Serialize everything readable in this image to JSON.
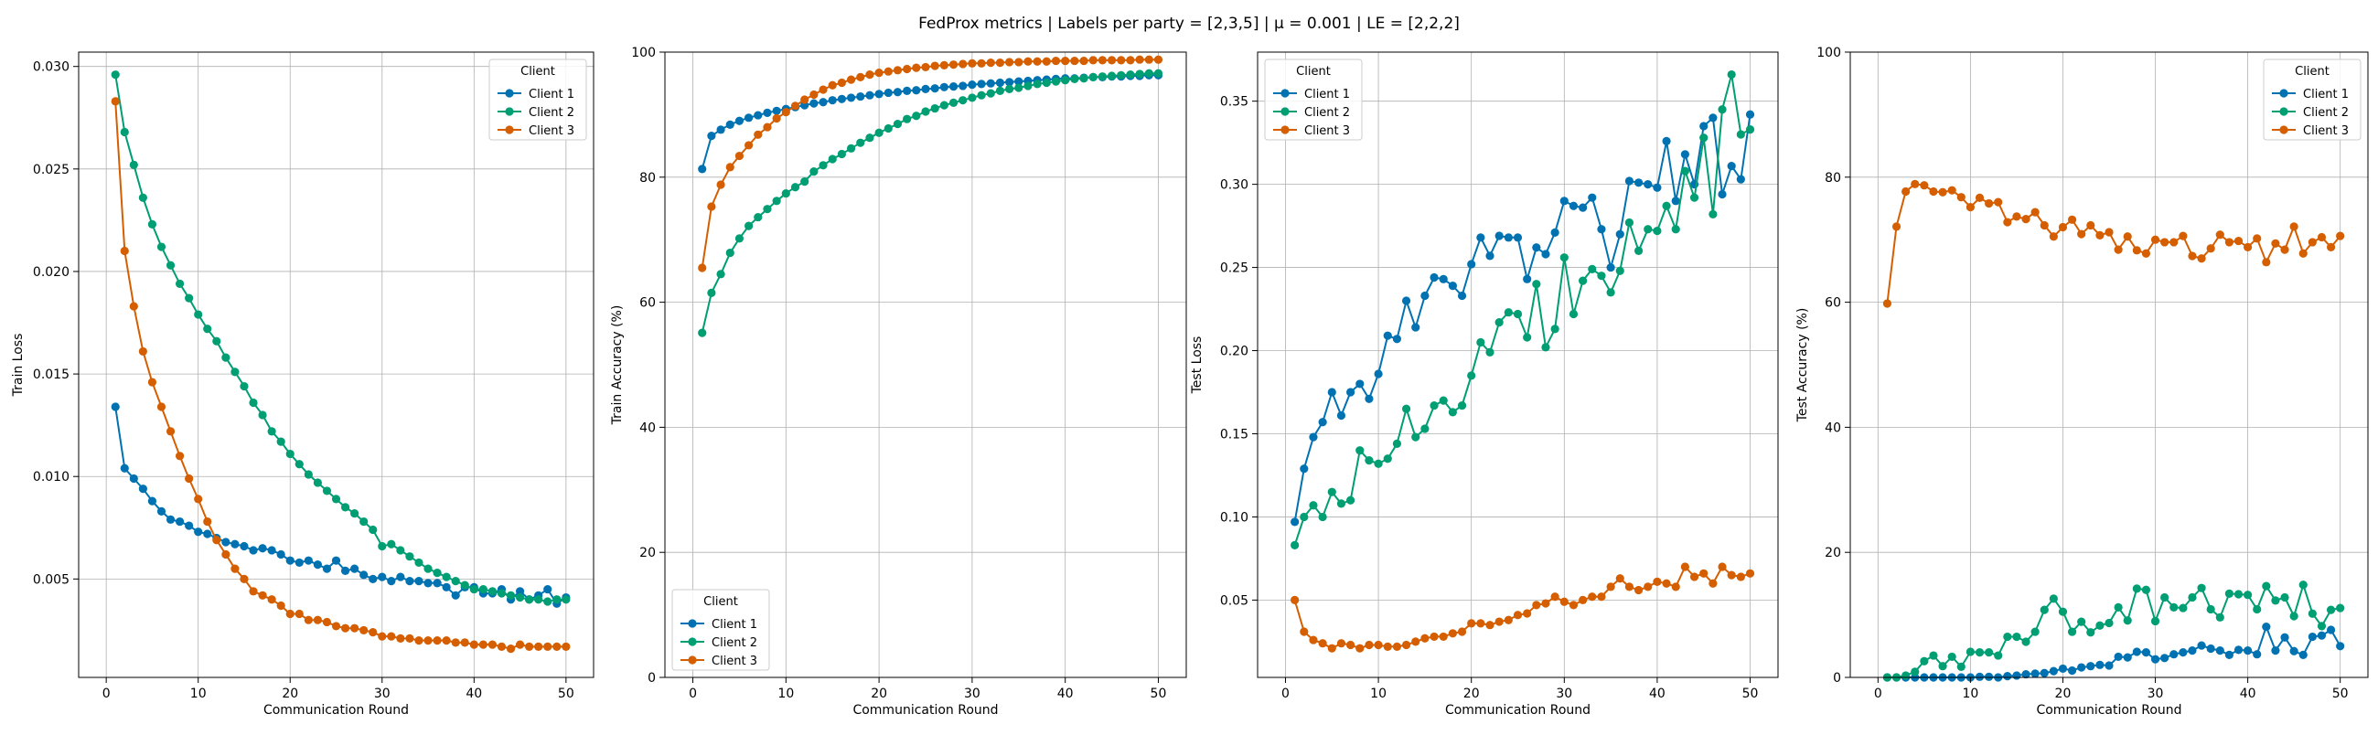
{
  "figure": {
    "suptitle": "FedProx metrics | Labels per party = [2,3,5] | μ = 0.001 | LE = [2,2,2]"
  },
  "colors": {
    "Client 1": "#0072b2",
    "Client 2": "#009e73",
    "Client 3": "#d55e00"
  },
  "chart_data": [
    {
      "type": "line",
      "title": "",
      "xlabel": "Communication Round",
      "ylabel": "Train Loss",
      "xlim": [
        -3,
        53
      ],
      "ylim": [
        0.0002,
        0.0307
      ],
      "xticks": [
        0,
        10,
        20,
        30,
        40,
        50
      ],
      "yticks": [
        0.005,
        0.01,
        0.015,
        0.02,
        0.025,
        0.03
      ],
      "ytick_labels": [
        "0.005",
        "0.010",
        "0.015",
        "0.020",
        "0.025",
        "0.030"
      ],
      "grid": true,
      "legend": {
        "title": "Client",
        "position": "upper right"
      },
      "x": [
        1,
        2,
        3,
        4,
        5,
        6,
        7,
        8,
        9,
        10,
        11,
        12,
        13,
        14,
        15,
        16,
        17,
        18,
        19,
        20,
        21,
        22,
        23,
        24,
        25,
        26,
        27,
        28,
        29,
        30,
        31,
        32,
        33,
        34,
        35,
        36,
        37,
        38,
        39,
        40,
        41,
        42,
        43,
        44,
        45,
        46,
        47,
        48,
        49,
        50
      ],
      "series": [
        {
          "name": "Client 1",
          "values": [
            0.0134,
            0.0104,
            0.0099,
            0.0094,
            0.0088,
            0.0083,
            0.0079,
            0.0078,
            0.0076,
            0.0073,
            0.0072,
            0.007,
            0.0068,
            0.0067,
            0.0066,
            0.0064,
            0.0065,
            0.0064,
            0.0062,
            0.0059,
            0.0058,
            0.0059,
            0.0057,
            0.0055,
            0.0059,
            0.0054,
            0.0055,
            0.0052,
            0.005,
            0.0051,
            0.0049,
            0.0051,
            0.0049,
            0.0049,
            0.0048,
            0.0048,
            0.0046,
            0.0042,
            0.0046,
            0.0046,
            0.0043,
            0.0043,
            0.0045,
            0.004,
            0.0044,
            0.004,
            0.0042,
            0.0045,
            0.0038,
            0.0041
          ]
        },
        {
          "name": "Client 2",
          "values": [
            0.0296,
            0.0268,
            0.0252,
            0.0236,
            0.0223,
            0.0212,
            0.0203,
            0.0194,
            0.0187,
            0.0179,
            0.0172,
            0.0166,
            0.0158,
            0.0151,
            0.0144,
            0.0136,
            0.013,
            0.0122,
            0.0117,
            0.0111,
            0.0106,
            0.0101,
            0.0097,
            0.0093,
            0.0089,
            0.0085,
            0.0082,
            0.0078,
            0.0074,
            0.0066,
            0.0067,
            0.0064,
            0.0061,
            0.0058,
            0.0055,
            0.0053,
            0.0051,
            0.0049,
            0.0047,
            0.0045,
            0.0045,
            0.0044,
            0.0043,
            0.0042,
            0.0041,
            0.004,
            0.004,
            0.0039,
            0.004,
            0.004
          ]
        },
        {
          "name": "Client 3",
          "values": [
            0.0283,
            0.021,
            0.0183,
            0.0161,
            0.0146,
            0.0134,
            0.0122,
            0.011,
            0.0099,
            0.0089,
            0.0078,
            0.0069,
            0.0062,
            0.0055,
            0.005,
            0.0044,
            0.0042,
            0.004,
            0.0037,
            0.0033,
            0.0033,
            0.003,
            0.003,
            0.0029,
            0.0027,
            0.0026,
            0.0026,
            0.0025,
            0.0024,
            0.0022,
            0.0022,
            0.0021,
            0.0021,
            0.002,
            0.002,
            0.002,
            0.002,
            0.0019,
            0.0019,
            0.0018,
            0.0018,
            0.0018,
            0.0017,
            0.0016,
            0.0018,
            0.0017,
            0.0017,
            0.0017,
            0.0017,
            0.0017
          ]
        }
      ]
    },
    {
      "type": "line",
      "title": "",
      "xlabel": "Communication Round",
      "ylabel": "Train Accuracy (%)",
      "xlim": [
        -3,
        53
      ],
      "ylim": [
        0,
        100
      ],
      "xticks": [
        0,
        10,
        20,
        30,
        40,
        50
      ],
      "yticks": [
        0,
        20,
        40,
        60,
        80,
        100
      ],
      "ytick_labels": [
        "0",
        "20",
        "40",
        "60",
        "80",
        "100"
      ],
      "grid": true,
      "legend": {
        "title": "Client",
        "position": "lower left"
      },
      "x": [
        1,
        2,
        3,
        4,
        5,
        6,
        7,
        8,
        9,
        10,
        11,
        12,
        13,
        14,
        15,
        16,
        17,
        18,
        19,
        20,
        21,
        22,
        23,
        24,
        25,
        26,
        27,
        28,
        29,
        30,
        31,
        32,
        33,
        34,
        35,
        36,
        37,
        38,
        39,
        40,
        41,
        42,
        43,
        44,
        45,
        46,
        47,
        48,
        49,
        50
      ],
      "series": [
        {
          "name": "Client 1",
          "values": [
            81.3,
            86.6,
            87.6,
            88.4,
            89.0,
            89.5,
            89.9,
            90.3,
            90.6,
            90.9,
            91.2,
            91.5,
            91.8,
            92.0,
            92.3,
            92.5,
            92.7,
            92.9,
            93.1,
            93.3,
            93.5,
            93.6,
            93.8,
            93.9,
            94.1,
            94.2,
            94.4,
            94.5,
            94.6,
            94.8,
            94.9,
            95.0,
            95.1,
            95.2,
            95.3,
            95.4,
            95.5,
            95.6,
            95.7,
            95.8,
            95.8,
            95.9,
            96.0,
            96.0,
            96.1,
            96.1,
            96.2,
            96.2,
            96.3,
            96.3
          ]
        },
        {
          "name": "Client 2",
          "values": [
            55.1,
            61.5,
            64.5,
            67.9,
            70.2,
            72.2,
            73.6,
            74.9,
            76.2,
            77.4,
            78.4,
            79.3,
            80.9,
            81.9,
            82.9,
            83.7,
            84.6,
            85.5,
            86.3,
            87.1,
            87.8,
            88.5,
            89.3,
            89.8,
            90.5,
            91.0,
            91.5,
            91.9,
            92.3,
            92.7,
            93.1,
            93.4,
            93.8,
            94.1,
            94.3,
            94.6,
            94.9,
            95.1,
            95.3,
            95.5,
            95.7,
            95.8,
            96.0,
            96.1,
            96.2,
            96.3,
            96.4,
            96.5,
            96.6,
            96.6
          ]
        },
        {
          "name": "Client 3",
          "values": [
            65.5,
            75.3,
            78.8,
            81.6,
            83.4,
            85.1,
            86.8,
            88.0,
            89.4,
            90.4,
            91.4,
            92.4,
            93.2,
            94.0,
            94.7,
            95.1,
            95.6,
            96.0,
            96.4,
            96.7,
            96.9,
            97.1,
            97.3,
            97.5,
            97.6,
            97.8,
            97.9,
            98.0,
            98.1,
            98.2,
            98.2,
            98.3,
            98.3,
            98.4,
            98.4,
            98.5,
            98.5,
            98.5,
            98.6,
            98.6,
            98.6,
            98.6,
            98.7,
            98.7,
            98.7,
            98.7,
            98.7,
            98.8,
            98.8,
            98.8
          ]
        }
      ]
    },
    {
      "type": "line",
      "title": "",
      "xlabel": "Communication Round",
      "ylabel": "Test Loss",
      "xlim": [
        -3,
        53
      ],
      "ylim": [
        0.0035,
        0.3795
      ],
      "xticks": [
        0,
        10,
        20,
        30,
        40,
        50
      ],
      "yticks": [
        0.05,
        0.1,
        0.15,
        0.2,
        0.25,
        0.3,
        0.35
      ],
      "ytick_labels": [
        "0.05",
        "0.10",
        "0.15",
        "0.20",
        "0.25",
        "0.30",
        "0.35"
      ],
      "grid": true,
      "legend": {
        "title": "Client",
        "position": "upper left"
      },
      "x": [
        1,
        2,
        3,
        4,
        5,
        6,
        7,
        8,
        9,
        10,
        11,
        12,
        13,
        14,
        15,
        16,
        17,
        18,
        19,
        20,
        21,
        22,
        23,
        24,
        25,
        26,
        27,
        28,
        29,
        30,
        31,
        32,
        33,
        34,
        35,
        36,
        37,
        38,
        39,
        40,
        41,
        42,
        43,
        44,
        45,
        46,
        47,
        48,
        49,
        50
      ],
      "series": [
        {
          "name": "Client 1",
          "values": [
            0.097,
            0.129,
            0.148,
            0.157,
            0.175,
            0.161,
            0.175,
            0.18,
            0.171,
            0.186,
            0.209,
            0.207,
            0.23,
            0.214,
            0.233,
            0.244,
            0.243,
            0.239,
            0.233,
            0.252,
            0.268,
            0.257,
            0.269,
            0.268,
            0.268,
            0.243,
            0.262,
            0.258,
            0.271,
            0.29,
            0.287,
            0.286,
            0.292,
            0.273,
            0.25,
            0.27,
            0.302,
            0.301,
            0.3,
            0.298,
            0.326,
            0.29,
            0.318,
            0.3,
            0.335,
            0.34,
            0.294,
            0.311,
            0.303,
            0.342
          ]
        },
        {
          "name": "Client 2",
          "values": [
            0.083,
            0.1,
            0.107,
            0.1,
            0.115,
            0.108,
            0.11,
            0.14,
            0.134,
            0.132,
            0.135,
            0.144,
            0.165,
            0.148,
            0.153,
            0.167,
            0.17,
            0.163,
            0.167,
            0.185,
            0.205,
            0.199,
            0.217,
            0.223,
            0.222,
            0.208,
            0.24,
            0.202,
            0.213,
            0.256,
            0.222,
            0.242,
            0.249,
            0.245,
            0.235,
            0.248,
            0.277,
            0.26,
            0.273,
            0.272,
            0.287,
            0.273,
            0.308,
            0.292,
            0.328,
            0.282,
            0.345,
            0.366,
            0.33,
            0.333
          ]
        },
        {
          "name": "Client 3",
          "values": [
            0.05,
            0.031,
            0.026,
            0.024,
            0.021,
            0.024,
            0.023,
            0.021,
            0.023,
            0.023,
            0.022,
            0.022,
            0.023,
            0.025,
            0.027,
            0.028,
            0.028,
            0.03,
            0.031,
            0.036,
            0.036,
            0.035,
            0.037,
            0.038,
            0.041,
            0.042,
            0.047,
            0.048,
            0.052,
            0.049,
            0.047,
            0.05,
            0.052,
            0.052,
            0.058,
            0.063,
            0.058,
            0.056,
            0.058,
            0.061,
            0.06,
            0.058,
            0.07,
            0.064,
            0.066,
            0.06,
            0.07,
            0.065,
            0.064,
            0.066
          ]
        }
      ]
    },
    {
      "type": "line",
      "title": "",
      "xlabel": "Communication Round",
      "ylabel": "Test Accuracy (%)",
      "xlim": [
        -3,
        53
      ],
      "ylim": [
        0,
        100
      ],
      "xticks": [
        0,
        10,
        20,
        30,
        40,
        50
      ],
      "yticks": [
        0,
        20,
        40,
        60,
        80,
        100
      ],
      "ytick_labels": [
        "0",
        "20",
        "40",
        "60",
        "80",
        "100"
      ],
      "grid": true,
      "legend": {
        "title": "Client",
        "position": "upper right"
      },
      "x": [
        1,
        2,
        3,
        4,
        5,
        6,
        7,
        8,
        9,
        10,
        11,
        12,
        13,
        14,
        15,
        16,
        17,
        18,
        19,
        20,
        21,
        22,
        23,
        24,
        25,
        26,
        27,
        28,
        29,
        30,
        31,
        32,
        33,
        34,
        35,
        36,
        37,
        38,
        39,
        40,
        41,
        42,
        43,
        44,
        45,
        46,
        47,
        48,
        49,
        50
      ],
      "series": [
        {
          "name": "Client 1",
          "values": [
            0.0,
            0.0,
            0.0,
            0.0,
            0.0,
            0.0,
            0.0,
            0.0,
            0.0,
            0.0,
            0.1,
            0.1,
            0.0,
            0.2,
            0.3,
            0.5,
            0.6,
            0.7,
            1.0,
            1.4,
            1.1,
            1.6,
            1.8,
            2.0,
            1.9,
            3.3,
            3.2,
            4.1,
            4.0,
            2.9,
            3.1,
            3.7,
            4.0,
            4.3,
            5.1,
            4.6,
            4.3,
            3.6,
            4.4,
            4.3,
            3.7,
            8.1,
            4.3,
            6.4,
            4.2,
            3.6,
            6.5,
            6.7,
            7.6,
            5.0
          ]
        },
        {
          "name": "Client 2",
          "values": [
            0.0,
            0.0,
            0.3,
            0.9,
            2.6,
            3.5,
            1.8,
            3.3,
            1.7,
            4.1,
            4.0,
            4.0,
            3.5,
            6.5,
            6.5,
            5.7,
            7.3,
            10.8,
            12.6,
            10.5,
            7.3,
            8.9,
            7.2,
            8.3,
            8.7,
            11.2,
            9.1,
            14.2,
            14.0,
            9.0,
            12.8,
            11.2,
            11.1,
            12.8,
            14.3,
            10.9,
            9.6,
            13.4,
            13.3,
            13.2,
            10.9,
            14.6,
            12.3,
            12.8,
            9.8,
            14.8,
            10.2,
            8.2,
            10.8,
            11.1
          ]
        },
        {
          "name": "Client 3",
          "values": [
            59.8,
            72.1,
            77.7,
            78.9,
            78.7,
            77.7,
            77.6,
            77.9,
            76.8,
            75.2,
            76.7,
            75.8,
            76.0,
            72.8,
            73.7,
            73.3,
            74.4,
            72.3,
            70.5,
            72.0,
            73.2,
            70.9,
            72.3,
            70.7,
            71.2,
            68.4,
            70.5,
            68.3,
            67.8,
            70.0,
            69.6,
            69.6,
            70.6,
            67.4,
            67.0,
            68.6,
            70.8,
            69.6,
            69.8,
            68.8,
            70.2,
            66.4,
            69.4,
            68.4,
            72.1,
            67.8,
            69.6,
            70.4,
            68.8,
            70.6
          ]
        }
      ]
    }
  ]
}
